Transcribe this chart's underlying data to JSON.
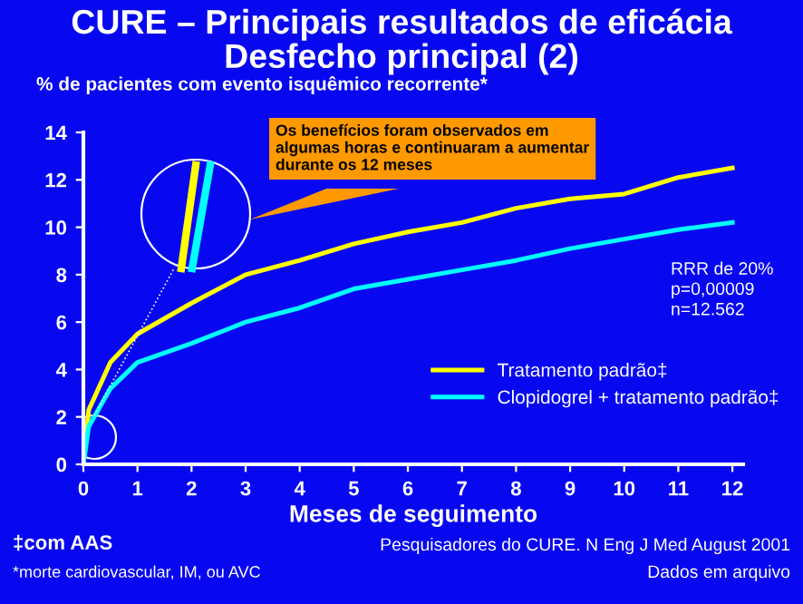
{
  "chart_data": {
    "type": "line",
    "title": "CURE – Principais resultados de eficácia\nDesfecho principal (2)",
    "ylabel": "% de pacientes com evento isquêmico recorrente*",
    "xlabel": "Meses de seguimento",
    "series": [
      {
        "name": "Tratamento padrão‡",
        "color": "#ffff00",
        "x": [
          0,
          0.1,
          0.5,
          1,
          2,
          3,
          4,
          5,
          6,
          7,
          8,
          9,
          10,
          11,
          12
        ],
        "values": [
          0,
          2.3,
          4.3,
          5.5,
          6.8,
          8.0,
          8.6,
          9.3,
          9.8,
          10.2,
          10.8,
          11.2,
          11.4,
          12.1,
          12.5
        ]
      },
      {
        "name": "Clopidogrel + tratamento padrão‡",
        "color": "#00ffff",
        "x": [
          0,
          0.1,
          0.5,
          1,
          2,
          3,
          4,
          5,
          6,
          7,
          8,
          9,
          10,
          11,
          12
        ],
        "values": [
          0,
          1.6,
          3.2,
          4.3,
          5.1,
          6.0,
          6.6,
          7.4,
          7.8,
          8.2,
          8.6,
          9.1,
          9.5,
          9.9,
          10.2
        ]
      }
    ],
    "xlim": [
      0,
      12.2
    ],
    "xticks": [
      0,
      1,
      2,
      3,
      4,
      5,
      6,
      7,
      8,
      9,
      10,
      11,
      12
    ],
    "ylim": [
      0,
      14
    ],
    "yticks": [
      0,
      2,
      4,
      6,
      8,
      10,
      12,
      14
    ],
    "grid": false,
    "legend": "bottom right",
    "marker": "none",
    "line_style": "solid",
    "annotations": [
      "Os benefícios foram observados em\nalgumas horas e continuaram a aumentar\ndurante os 12 meses",
      "RRR de 20%\np=0,00009\nn=12.562",
      "‡com AAS",
      "*morte cardiovascular, IM, ou AVC",
      "Pesquisadores do CURE. N Eng J Med August 2001",
      "Dados em arquivo"
    ]
  }
}
